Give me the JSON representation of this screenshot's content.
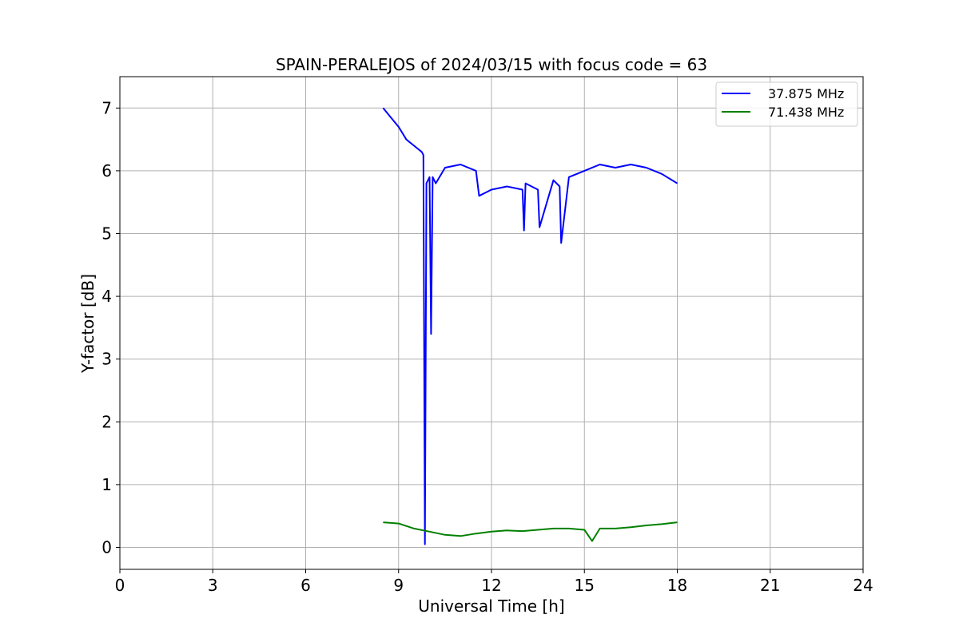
{
  "chart_data": {
    "type": "line",
    "title": "SPAIN-PERALEJOS of 2024/03/15 with focus code = 63",
    "xlabel": "Universal Time [h]",
    "ylabel": "Y-factor [dB]",
    "xlim": [
      0,
      24
    ],
    "ylim": [
      -0.35,
      7.5
    ],
    "xticks": [
      0,
      3,
      6,
      9,
      12,
      15,
      18,
      21,
      24
    ],
    "yticks": [
      0,
      1,
      2,
      3,
      4,
      5,
      6,
      7
    ],
    "grid": true,
    "legend_position": "top-right",
    "series": [
      {
        "name": "37.875 MHz",
        "color": "#0000ff",
        "x": [
          8.5,
          8.75,
          9.0,
          9.25,
          9.5,
          9.75,
          9.8,
          9.85,
          9.9,
          10.0,
          10.05,
          10.1,
          10.2,
          10.5,
          11.0,
          11.5,
          11.6,
          12.0,
          12.5,
          13.0,
          13.05,
          13.1,
          13.5,
          13.55,
          14.0,
          14.2,
          14.25,
          14.5,
          15.0,
          15.5,
          16.0,
          16.5,
          17.0,
          17.5,
          18.0
        ],
        "y": [
          7.0,
          6.85,
          6.7,
          6.5,
          6.4,
          6.3,
          6.25,
          0.05,
          5.8,
          5.9,
          3.4,
          5.9,
          5.8,
          6.05,
          6.1,
          6.0,
          5.6,
          5.7,
          5.75,
          5.7,
          5.05,
          5.8,
          5.7,
          5.1,
          5.85,
          5.75,
          4.85,
          5.9,
          6.0,
          6.1,
          6.05,
          6.1,
          6.05,
          5.95,
          5.8
        ]
      },
      {
        "name": "71.438 MHz",
        "color": "#008000",
        "x": [
          8.5,
          9.0,
          9.5,
          10.0,
          10.5,
          11.0,
          11.5,
          12.0,
          12.5,
          13.0,
          13.5,
          14.0,
          14.5,
          15.0,
          15.25,
          15.5,
          16.0,
          16.5,
          17.0,
          17.5,
          18.0
        ],
        "y": [
          0.4,
          0.38,
          0.3,
          0.25,
          0.2,
          0.18,
          0.22,
          0.25,
          0.27,
          0.26,
          0.28,
          0.3,
          0.3,
          0.28,
          0.1,
          0.3,
          0.3,
          0.32,
          0.35,
          0.37,
          0.4
        ]
      }
    ]
  }
}
